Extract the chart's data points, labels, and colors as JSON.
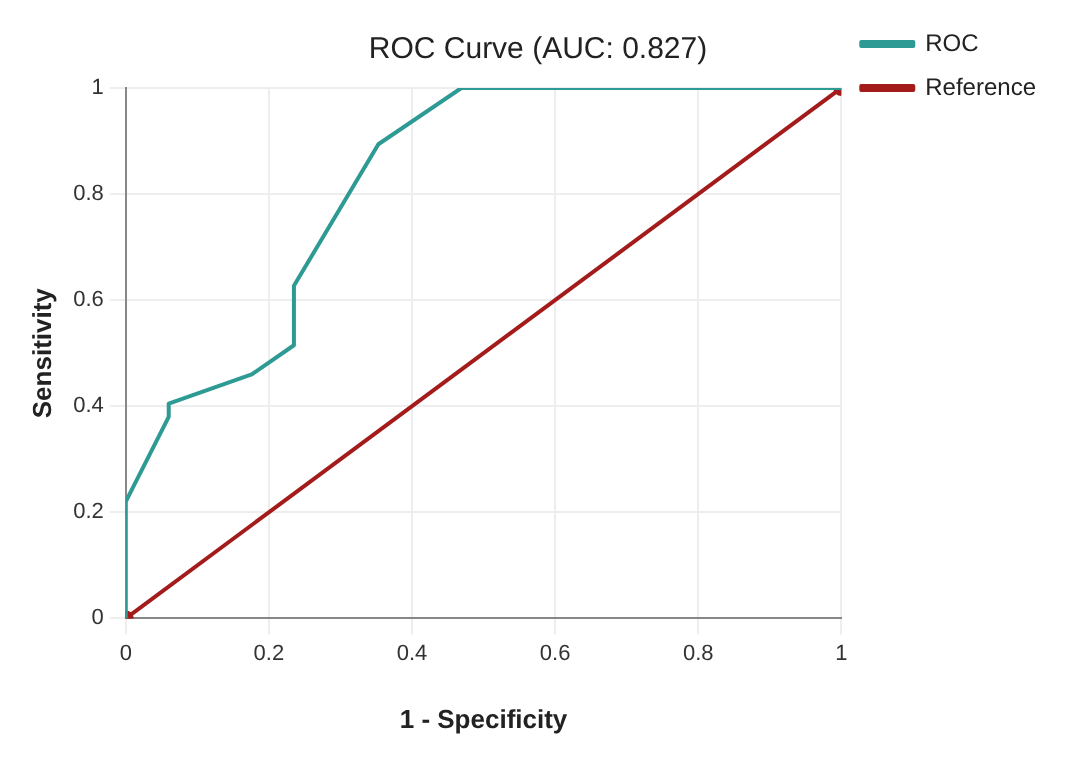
{
  "chart_data": {
    "type": "line",
    "title": "ROC Curve (AUC: 0.827)",
    "xlabel": "1 - Specificity",
    "ylabel": "Sensitivity",
    "xlim": [
      0,
      1
    ],
    "ylim": [
      0,
      1
    ],
    "xticks": [
      0,
      0.2,
      0.4,
      0.6,
      0.8,
      1
    ],
    "yticks": [
      0,
      0.2,
      0.4,
      0.6,
      0.8,
      1
    ],
    "grid": true,
    "legend": "right",
    "series": [
      {
        "name": "ROC",
        "color": "#2e9a94",
        "marker": "none",
        "x": [
          0,
          0,
          0.06,
          0.06,
          0.176,
          0.235,
          0.235,
          0.353,
          0.469,
          1
        ],
        "values": [
          0,
          0.22,
          0.38,
          0.405,
          0.46,
          0.515,
          0.627,
          0.894,
          1,
          1
        ]
      },
      {
        "name": "Reference",
        "color": "#a31b1b",
        "marker": "circle",
        "x": [
          0,
          1
        ],
        "values": [
          0,
          1
        ]
      }
    ]
  }
}
